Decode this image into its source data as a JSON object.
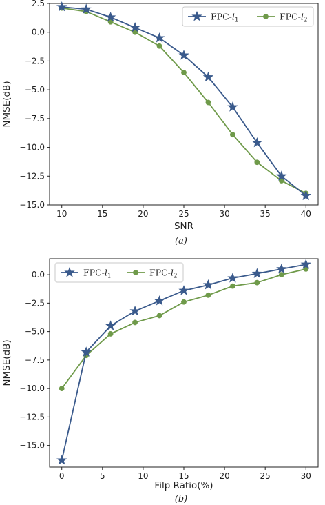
{
  "colors": {
    "series1": "#3a5a8c",
    "series2": "#6f9a4a"
  },
  "chart_data": [
    {
      "id": "a",
      "type": "line",
      "caption": "(a)",
      "xlabel": "SNR",
      "ylabel": "NMSE(dB)",
      "xlim": [
        8.5,
        41.5
      ],
      "ylim": [
        -15.0,
        2.5
      ],
      "xticks": [
        10,
        15,
        20,
        25,
        30,
        35,
        40
      ],
      "yticks": [
        2.5,
        0.0,
        -2.5,
        -5.0,
        -7.5,
        -10.0,
        -12.5,
        -15.0
      ],
      "ytick_labels": [
        "2.5",
        "0.0",
        "−2.5",
        "−5.0",
        "−7.5",
        "−10.0",
        "−12.5",
        "−15.0"
      ],
      "x": [
        10,
        13,
        16,
        19,
        22,
        25,
        28,
        31,
        34,
        37,
        40
      ],
      "series": [
        {
          "name_prefix": "FPC-",
          "name_var": "l",
          "name_sub": "1",
          "marker": "star",
          "values": [
            2.2,
            2.0,
            1.3,
            0.4,
            -0.5,
            -2.0,
            -3.9,
            -6.5,
            -9.6,
            -12.5,
            -14.2
          ]
        },
        {
          "name_prefix": "FPC-",
          "name_var": "l",
          "name_sub": "2",
          "marker": "circle",
          "values": [
            2.1,
            1.8,
            0.9,
            0.0,
            -1.2,
            -3.5,
            -6.1,
            -8.9,
            -11.3,
            -12.9,
            -14.0
          ]
        }
      ],
      "legend_position": "top-right"
    },
    {
      "id": "b",
      "type": "line",
      "caption": "(b)",
      "xlabel": "Filp Ratio(%)",
      "ylabel": "NMSE(dB)",
      "xlim": [
        -1.5,
        31.5
      ],
      "ylim": [
        -16.9,
        1.4
      ],
      "xticks": [
        0,
        5,
        10,
        15,
        20,
        25,
        30
      ],
      "yticks": [
        0.0,
        -2.5,
        -5.0,
        -7.5,
        -10.0,
        -12.5,
        -15.0
      ],
      "ytick_labels": [
        "0.0",
        "−2.5",
        "−5.0",
        "−7.5",
        "−10.0",
        "−12.5",
        "−15.0"
      ],
      "x": [
        0,
        3,
        6,
        9,
        12,
        15,
        18,
        21,
        24,
        27,
        30
      ],
      "series": [
        {
          "name_prefix": "FPC-",
          "name_var": "l",
          "name_sub": "1",
          "marker": "star",
          "values": [
            -16.3,
            -6.8,
            -4.5,
            -3.2,
            -2.3,
            -1.4,
            -0.9,
            -0.3,
            0.1,
            0.5,
            0.9
          ]
        },
        {
          "name_prefix": "FPC-",
          "name_var": "l",
          "name_sub": "2",
          "marker": "circle",
          "values": [
            -10.0,
            -7.1,
            -5.2,
            -4.2,
            -3.6,
            -2.4,
            -1.8,
            -1.0,
            -0.7,
            0.0,
            0.5
          ]
        }
      ],
      "legend_position": "top-left"
    }
  ]
}
